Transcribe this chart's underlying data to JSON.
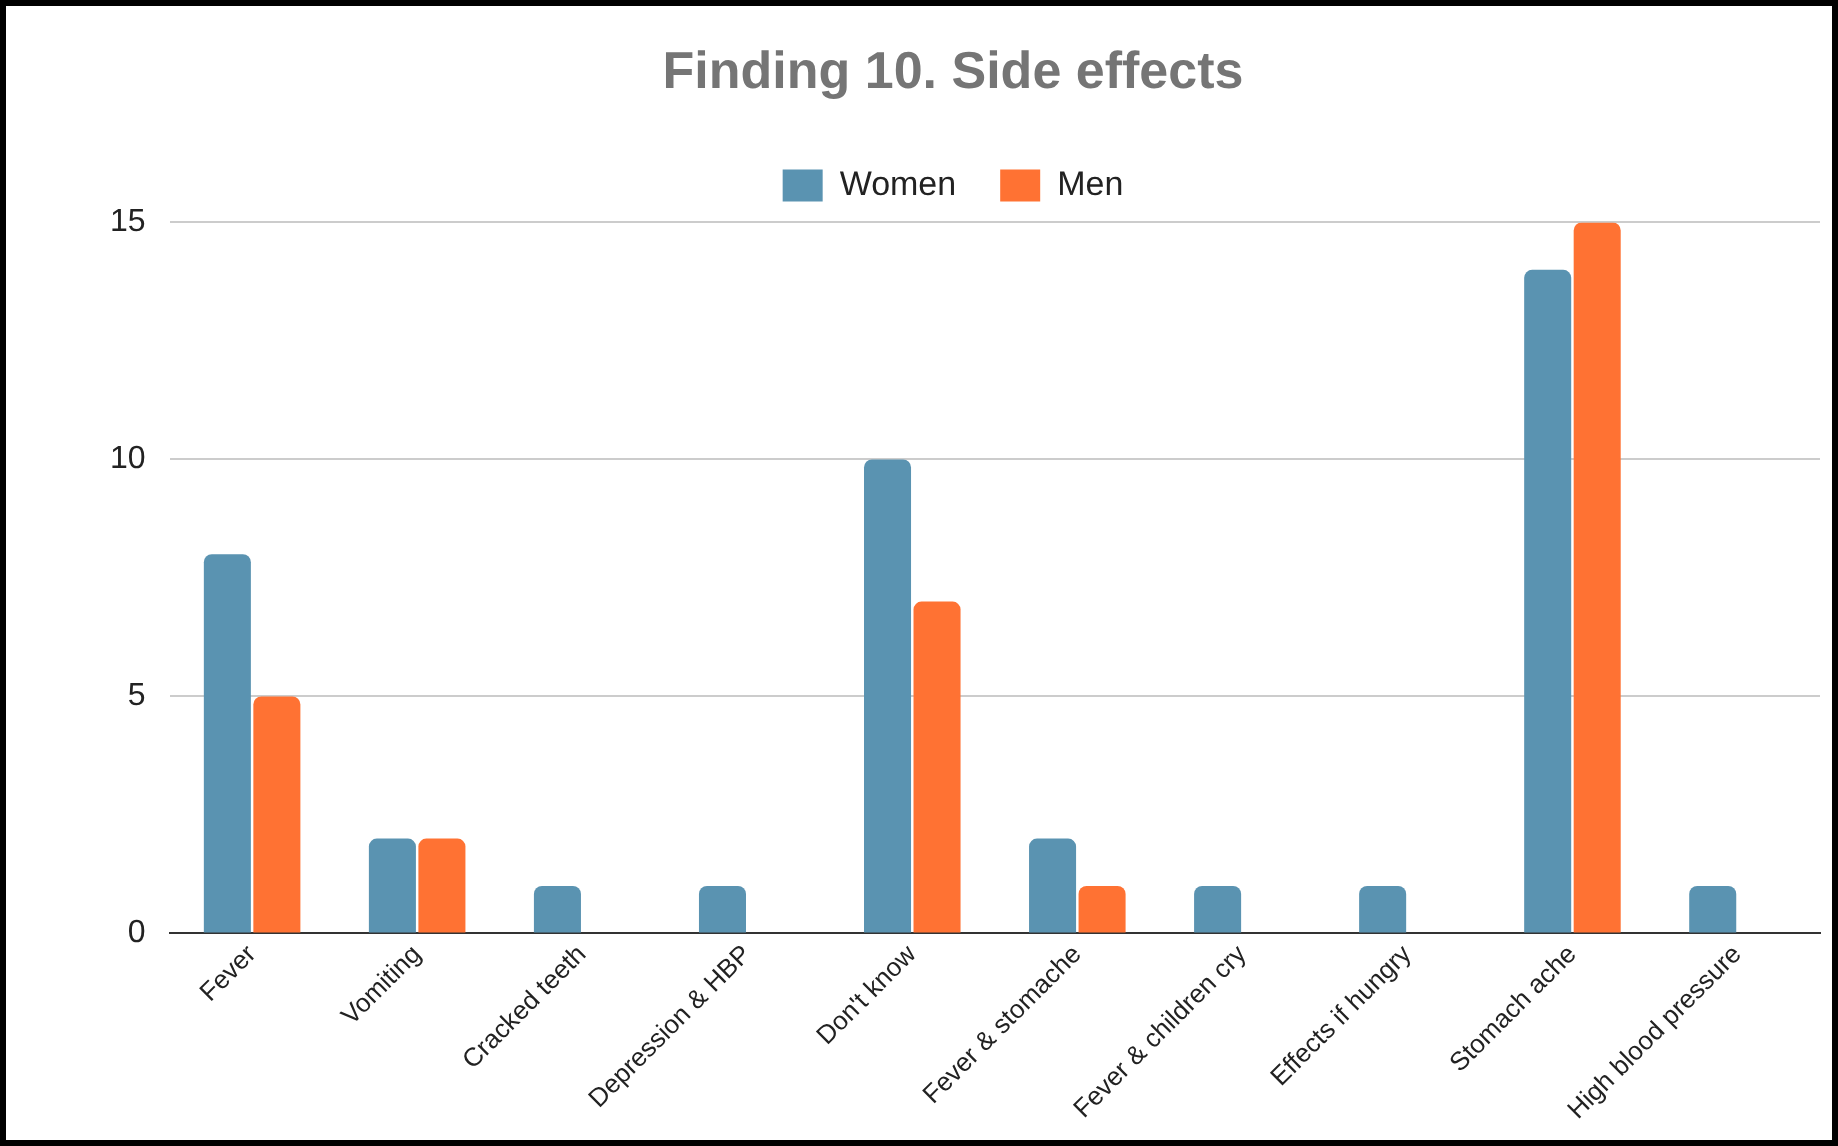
{
  "chart_data": {
    "type": "bar",
    "title": "Finding 10. Side effects",
    "categories": [
      "Fever",
      "Vomiting",
      "Cracked teeth",
      "Depression & HBP",
      "Don't know",
      "Fever & stomache",
      "Fever & children cry",
      "Effects if hungry",
      "Stomach ache",
      "High blood pressure"
    ],
    "series": [
      {
        "name": "Women",
        "color": "#5a93b1",
        "values": [
          8,
          2,
          1,
          1,
          10,
          2,
          1,
          1,
          14,
          1
        ]
      },
      {
        "name": "Men",
        "color": "#ff7233",
        "values": [
          5,
          2,
          0,
          0,
          7,
          1,
          0,
          0,
          15,
          0
        ]
      }
    ],
    "ylim": [
      0,
      15
    ],
    "yticks": [
      0,
      5,
      10,
      15
    ],
    "grid": "y",
    "legend": "top"
  }
}
